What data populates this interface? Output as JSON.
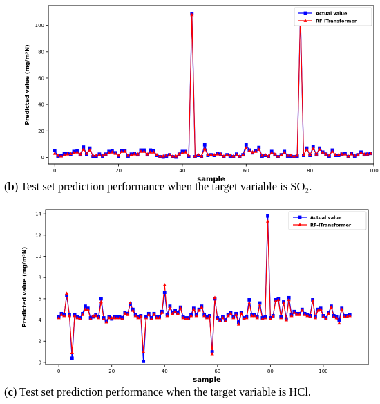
{
  "colors": {
    "actual": "#0000ff",
    "predicted": "#ff0000",
    "axis": "#000000",
    "background": "#ffffff"
  },
  "charts": [
    {
      "caption": {
        "letter": "b",
        "text": " Test set prediction performance when the target variable is SO₂."
      }
    },
    {
      "caption": {
        "letter": "c",
        "text": " Test set prediction performance when the target variable is HCl."
      }
    }
  ],
  "chart_data": [
    {
      "type": "line",
      "xlabel": "sample",
      "ylabel": "Predicted value (mg/m³N)",
      "xlim": [
        -2,
        100
      ],
      "ylim": [
        -5,
        115
      ],
      "xticks": [
        0,
        20,
        40,
        60,
        80,
        100
      ],
      "yticks": [
        0,
        20,
        40,
        60,
        80,
        100
      ],
      "grid": false,
      "legend": "top-right",
      "series": [
        {
          "name": "Actual value",
          "marker": "square",
          "color": "#0000ff",
          "values": [
            5.2,
            1.0,
            1.2,
            2.8,
            3.0,
            2.5,
            4.5,
            4.8,
            2.0,
            7.8,
            2.5,
            7.0,
            0.5,
            0.8,
            2.5,
            1.0,
            2.5,
            4.5,
            5.0,
            3.5,
            0.8,
            5.0,
            5.2,
            1.0,
            2.5,
            3.0,
            2.0,
            5.5,
            5.5,
            2.0,
            5.5,
            5.0,
            1.5,
            0.5,
            0.2,
            1.0,
            2.0,
            0.5,
            0.2,
            2.5,
            4.5,
            4.5,
            0.5,
            109.0,
            0.5,
            1.5,
            0.5,
            9.5,
            1.5,
            2.0,
            1.5,
            3.0,
            2.5,
            0.5,
            2.0,
            1.0,
            0.5,
            2.5,
            0.5,
            2.0,
            9.5,
            5.5,
            3.5,
            5.0,
            7.5,
            1.0,
            1.5,
            0.5,
            4.5,
            2.0,
            0.5,
            2.0,
            4.5,
            1.0,
            1.0,
            0.5,
            1.0,
            109.0,
            1.5,
            7.0,
            1.5,
            8.0,
            2.0,
            7.0,
            4.0,
            2.5,
            1.0,
            5.5,
            1.5,
            1.5,
            2.5,
            2.8,
            0.5,
            3.0,
            1.0,
            2.0,
            4.0,
            2.0,
            2.5,
            3.0
          ]
        },
        {
          "name": "RF-ITransformer",
          "marker": "triangle",
          "color": "#ff0000",
          "values": [
            3.0,
            1.5,
            1.0,
            2.0,
            2.5,
            2.8,
            3.5,
            4.0,
            2.5,
            6.0,
            3.0,
            5.5,
            1.5,
            1.5,
            2.0,
            1.5,
            2.5,
            3.5,
            4.0,
            3.0,
            1.5,
            4.5,
            4.5,
            1.5,
            2.0,
            2.5,
            2.5,
            4.5,
            4.5,
            2.5,
            4.0,
            4.0,
            2.0,
            1.0,
            1.0,
            1.5,
            2.0,
            1.0,
            1.0,
            2.5,
            3.5,
            4.0,
            1.5,
            108.0,
            1.0,
            2.0,
            1.0,
            6.5,
            2.0,
            2.0,
            2.0,
            2.5,
            2.5,
            1.0,
            2.0,
            1.5,
            1.0,
            2.0,
            1.0,
            2.0,
            7.0,
            5.0,
            4.0,
            4.5,
            6.0,
            1.5,
            2.0,
            1.0,
            3.5,
            2.5,
            1.0,
            2.0,
            3.5,
            1.5,
            1.5,
            1.0,
            1.5,
            108.0,
            2.0,
            6.0,
            2.0,
            6.5,
            2.5,
            6.0,
            4.0,
            2.5,
            1.5,
            4.5,
            2.0,
            2.0,
            2.5,
            2.5,
            1.0,
            2.5,
            1.5,
            2.0,
            3.5,
            2.5,
            2.5,
            3.0
          ]
        }
      ]
    },
    {
      "type": "line",
      "xlabel": "sample",
      "ylabel": "Predicted value (mg/m³N)",
      "xlim": [
        -5,
        117
      ],
      "ylim": [
        -0.2,
        14.4
      ],
      "xticks": [
        0,
        20,
        40,
        60,
        80,
        100
      ],
      "yticks": [
        0,
        2,
        4,
        6,
        8,
        10,
        12,
        14
      ],
      "grid": false,
      "legend": "top-right",
      "series": [
        {
          "name": "Actual value",
          "marker": "square",
          "color": "#0000ff",
          "values": [
            4.3,
            4.6,
            4.5,
            6.3,
            4.5,
            0.4,
            4.5,
            4.3,
            4.2,
            4.6,
            5.3,
            5.1,
            4.2,
            4.3,
            4.5,
            4.3,
            6.0,
            4.2,
            3.9,
            4.3,
            4.1,
            4.3,
            4.3,
            4.3,
            4.2,
            4.7,
            4.6,
            5.5,
            5.0,
            4.5,
            4.3,
            4.4,
            0.1,
            4.3,
            4.6,
            4.2,
            4.6,
            4.3,
            4.3,
            4.8,
            6.6,
            4.5,
            5.3,
            4.7,
            4.9,
            4.7,
            5.2,
            4.3,
            4.2,
            4.2,
            4.5,
            5.1,
            4.5,
            5.0,
            5.3,
            4.5,
            4.3,
            4.4,
            1.0,
            6.0,
            4.2,
            4.0,
            4.3,
            4.0,
            4.5,
            4.7,
            4.3,
            4.6,
            3.8,
            4.7,
            4.2,
            4.3,
            5.9,
            4.5,
            4.5,
            4.3,
            5.6,
            4.2,
            4.3,
            13.8,
            4.2,
            4.4,
            5.9,
            6.0,
            4.3,
            5.7,
            4.1,
            6.1,
            4.5,
            4.8,
            4.6,
            4.6,
            5.0,
            4.6,
            4.5,
            4.4,
            5.9,
            4.3,
            5.0,
            5.1,
            4.4,
            4.2,
            4.7,
            5.3,
            4.4,
            4.3,
            4.0,
            5.1,
            4.4,
            4.4,
            4.5
          ]
        },
        {
          "name": "RF-ITransformer",
          "marker": "triangle",
          "color": "#ff0000",
          "values": [
            4.2,
            4.5,
            4.4,
            6.5,
            4.4,
            0.9,
            4.4,
            4.2,
            4.1,
            4.5,
            5.0,
            5.0,
            4.1,
            4.4,
            4.4,
            4.2,
            5.7,
            4.1,
            3.8,
            4.2,
            4.2,
            4.2,
            4.2,
            4.2,
            4.1,
            4.6,
            4.5,
            5.6,
            4.9,
            4.4,
            4.2,
            4.3,
            1.0,
            4.2,
            4.5,
            4.1,
            4.5,
            4.2,
            4.2,
            4.7,
            7.3,
            4.4,
            5.1,
            4.6,
            4.8,
            4.6,
            5.1,
            4.2,
            4.1,
            4.1,
            4.4,
            5.0,
            4.4,
            4.9,
            5.2,
            4.4,
            4.2,
            4.3,
            0.8,
            6.1,
            4.1,
            3.9,
            4.2,
            3.9,
            4.4,
            4.6,
            4.2,
            4.5,
            3.6,
            4.6,
            4.1,
            4.2,
            5.6,
            4.4,
            4.4,
            4.2,
            5.4,
            4.1,
            4.2,
            13.3,
            4.1,
            4.3,
            5.8,
            5.9,
            4.2,
            5.6,
            4.0,
            5.9,
            4.4,
            4.7,
            4.5,
            4.5,
            4.9,
            4.5,
            4.4,
            4.3,
            5.8,
            4.2,
            4.9,
            5.0,
            4.3,
            4.1,
            4.6,
            5.2,
            4.3,
            4.2,
            3.7,
            5.0,
            4.3,
            4.3,
            4.4
          ]
        }
      ]
    }
  ]
}
